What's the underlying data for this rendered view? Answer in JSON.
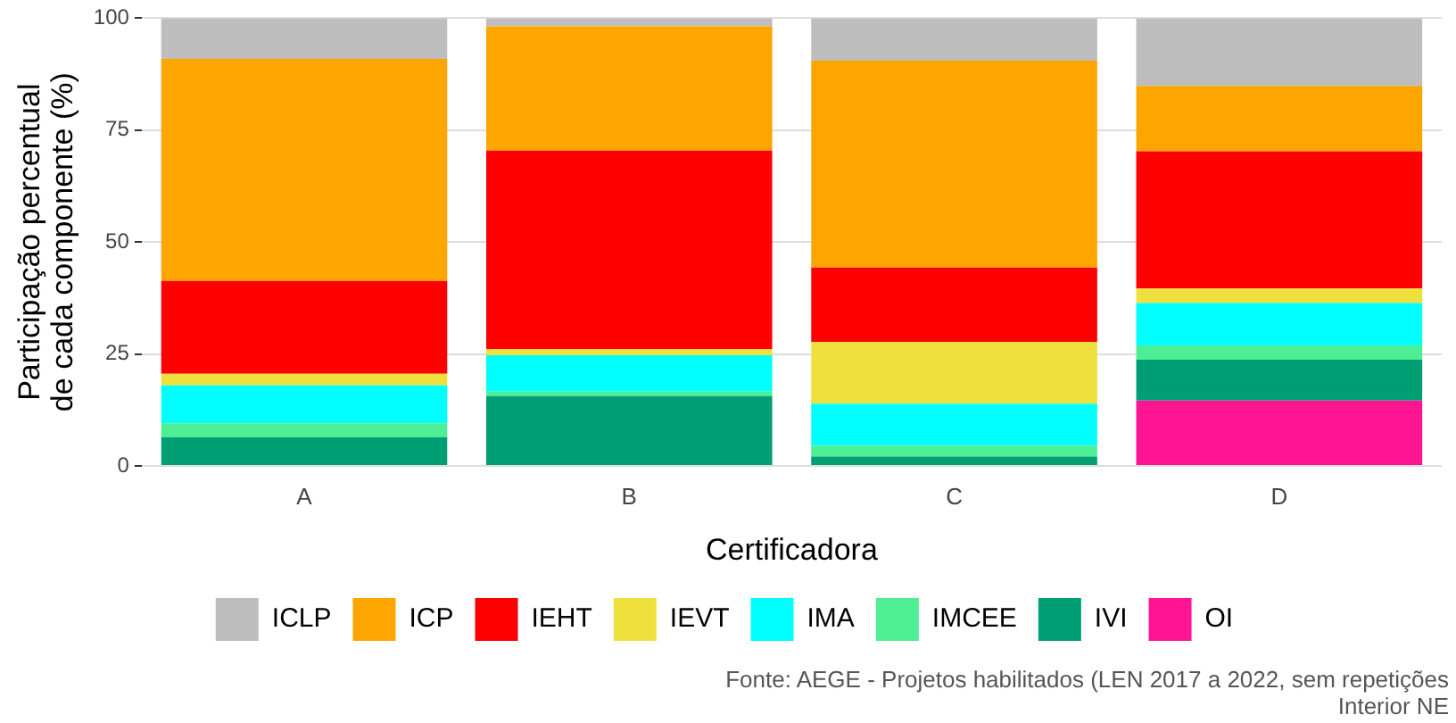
{
  "chart_data": {
    "type": "bar",
    "stacked": true,
    "xlabel": "Certificadora",
    "ylabel": "Participação percentual\nde cada componente (%)",
    "categories": [
      "A",
      "B",
      "C",
      "D"
    ],
    "series": [
      {
        "name": "OI",
        "color": "#ff1493",
        "values": [
          0,
          0,
          0,
          14.6
        ]
      },
      {
        "name": "IVI",
        "color": "#009e73",
        "values": [
          6.4,
          15.6,
          2.1,
          9.1
        ]
      },
      {
        "name": "IMCEE",
        "color": "#4eee94",
        "values": [
          3.1,
          1.0,
          2.4,
          3.2
        ]
      },
      {
        "name": "IMA",
        "color": "#00ffff",
        "values": [
          8.5,
          8.1,
          9.4,
          9.5
        ]
      },
      {
        "name": "IEVT",
        "color": "#eee13e",
        "values": [
          2.6,
          1.4,
          13.8,
          3.2
        ]
      },
      {
        "name": "IEHT",
        "color": "#ff0000",
        "values": [
          20.7,
          44.3,
          16.6,
          30.7
        ]
      },
      {
        "name": "ICP",
        "color": "#ffa500",
        "values": [
          49.6,
          27.8,
          46.2,
          14.6
        ]
      },
      {
        "name": "ICLP",
        "color": "#bebebe",
        "values": [
          9.1,
          1.8,
          9.5,
          15.1
        ]
      }
    ],
    "ylim": [
      0,
      100
    ],
    "yticks": [
      0,
      25,
      50,
      75,
      100
    ],
    "grid": "y",
    "legend": "bottom",
    "annotations": [
      "Fonte: AEGE - Projetos habilitados (LEN 2017 a 2022, sem repetições",
      "Interior NE"
    ]
  }
}
